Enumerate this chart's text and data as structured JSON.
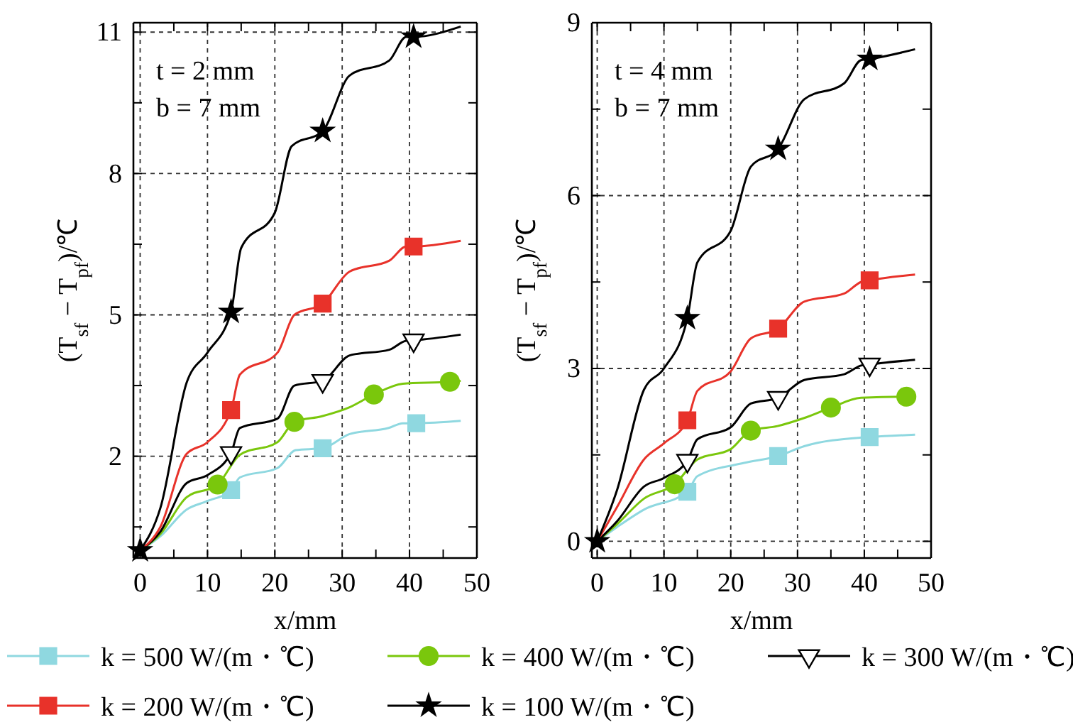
{
  "chart_data": [
    {
      "type": "line",
      "xlabel": "x/mm",
      "ylabel": "(T$_{sf}$ − T$_{pf}$)/℃",
      "annotations": [
        "t = 2 mm",
        "b = 7 mm"
      ],
      "xlim": [
        -1,
        50
      ],
      "ylim": [
        -0.16,
        11.2
      ],
      "xticks": [
        0,
        {
          "value": 5,
          "label": null
        },
        10,
        {
          "value": 15,
          "label": null
        },
        20,
        {
          "value": 25,
          "label": null
        },
        30,
        {
          "value": 35,
          "label": null
        },
        40,
        {
          "value": 45,
          "label": null
        },
        50
      ],
      "yticks": [
        {
          "value": 0.5,
          "label": null
        },
        2,
        {
          "value": 3.5,
          "label": null
        },
        5,
        {
          "value": 6.5,
          "label": null
        },
        8,
        {
          "value": 9.5,
          "label": null
        },
        11
      ],
      "grid": true,
      "line_style": "solid",
      "legend": "bottom",
      "series": [
        {
          "name": "k = 500 W/(m・℃)",
          "color": "#8fd8e0",
          "x": [
            0,
            3,
            6.9,
            10,
            13.5,
            14.8,
            20.4,
            23.1,
            27.1,
            31.1,
            36.9,
            39,
            41,
            47.6
          ],
          "values": [
            0,
            0.3,
            0.87,
            1.05,
            1.28,
            1.55,
            1.75,
            2.13,
            2.17,
            2.47,
            2.6,
            2.7,
            2.7,
            2.75
          ]
        },
        {
          "name": "k = 400 W/(m・℃)",
          "color": "#7ac70c",
          "x": [
            0,
            3,
            6.9,
            11.5,
            14.8,
            20.4,
            22.9,
            27,
            31.1,
            34.7,
            39,
            46,
            47.6
          ],
          "values": [
            0,
            0.35,
            1.13,
            1.4,
            2.03,
            2.3,
            2.73,
            2.85,
            3.04,
            3.31,
            3.54,
            3.58,
            3.6
          ]
        },
        {
          "name": "k = 300 W/(m・℃)",
          "color": "#000000",
          "x": [
            0,
            3,
            6.9,
            10,
            13.5,
            14.8,
            20.4,
            22.9,
            27.1,
            31.1,
            37,
            39.5,
            40.6,
            47.6
          ],
          "values": [
            0,
            0.4,
            1.43,
            1.6,
            2.07,
            2.6,
            2.8,
            3.5,
            3.6,
            4.14,
            4.26,
            4.45,
            4.46,
            4.58
          ]
        },
        {
          "name": "k = 200 W/(m・℃)",
          "color": "#e8322a",
          "x": [
            0,
            3,
            6.9,
            10,
            13.5,
            14.8,
            20.4,
            22.9,
            27.1,
            31.1,
            37,
            39.5,
            40.6,
            47.6
          ],
          "values": [
            0,
            0.5,
            2.05,
            2.3,
            2.98,
            3.73,
            4.2,
            5,
            5.24,
            5.92,
            6.15,
            6.45,
            6.45,
            6.57
          ]
        },
        {
          "name": "k = 100 W/(m・℃)",
          "color": "#000000",
          "x": [
            0,
            3,
            6.9,
            10,
            13.5,
            15,
            20,
            22.5,
            27.1,
            31.1,
            37,
            39.5,
            40.6,
            47.6
          ],
          "values": [
            0,
            0.9,
            3.56,
            4.2,
            5.06,
            6.42,
            7.17,
            8.58,
            8.9,
            10.08,
            10.4,
            10.9,
            10.9,
            11.12
          ]
        },
        {
          "type": "scatter",
          "color": "#8fd8e0",
          "marker": "square",
          "x": [
            13.5,
            27.1,
            41
          ],
          "values": [
            1.28,
            2.17,
            2.7
          ]
        },
        {
          "type": "scatter",
          "color": "#7ac70c",
          "marker": "circle",
          "x": [
            11.5,
            22.9,
            34.7,
            46
          ],
          "values": [
            1.4,
            2.73,
            3.31,
            3.58
          ]
        },
        {
          "type": "scatter",
          "color": "#000000",
          "marker": "triangle",
          "x": [
            13.5,
            27.1,
            40.6
          ],
          "values": [
            2.07,
            3.6,
            4.46
          ]
        },
        {
          "type": "scatter",
          "color": "#e8322a",
          "marker": "square",
          "x": [
            13.5,
            27.1,
            40.6
          ],
          "values": [
            2.98,
            5.24,
            6.45
          ]
        },
        {
          "type": "scatter",
          "color": "#000000",
          "marker": "star",
          "x": [
            0,
            13.5,
            27.1,
            40.6
          ],
          "values": [
            0,
            5.06,
            8.9,
            10.9
          ]
        }
      ]
    },
    {
      "type": "line",
      "xlabel": "x/mm",
      "ylabel": "(T$_{sf}$ − T$_{pf}$)/℃",
      "annotations": [
        "t = 4 mm",
        "b = 7 mm"
      ],
      "xlim": [
        -0.8,
        50
      ],
      "ylim": [
        -0.29,
        9
      ],
      "xticks": [
        0,
        {
          "value": 5,
          "label": null
        },
        10,
        {
          "value": 15,
          "label": null
        },
        20,
        {
          "value": 25,
          "label": null
        },
        30,
        {
          "value": 35,
          "label": null
        },
        40,
        {
          "value": 45,
          "label": null
        },
        50
      ],
      "yticks": [
        0,
        {
          "value": 1.5,
          "label": null
        },
        3,
        {
          "value": 4.5,
          "label": null
        },
        6,
        {
          "value": 7.5,
          "label": null
        },
        9
      ],
      "grid": true,
      "line_style": "solid",
      "series": [
        {
          "color": "#8fd8e0",
          "x": [
            0,
            3,
            7,
            13.5,
            15,
            22,
            27.1,
            31,
            39.5,
            40.8,
            47.6
          ],
          "values": [
            0,
            0.25,
            0.55,
            0.86,
            1.13,
            1.36,
            1.48,
            1.65,
            1.8,
            1.81,
            1.85
          ]
        },
        {
          "color": "#7ac70c",
          "x": [
            0,
            3,
            7,
            11.6,
            15,
            20,
            23,
            27,
            31,
            35,
            39.5,
            46.3,
            47.6
          ],
          "values": [
            0,
            0.3,
            0.74,
            0.99,
            1.42,
            1.6,
            1.92,
            2,
            2.14,
            2.32,
            2.49,
            2.51,
            2.5
          ]
        },
        {
          "color": "#000000",
          "x": [
            0,
            3,
            7,
            10,
            13.5,
            15,
            20,
            23,
            27.1,
            31,
            37,
            39.5,
            40.8,
            47.6
          ],
          "values": [
            0,
            0.35,
            0.95,
            1.1,
            1.4,
            1.77,
            1.98,
            2.39,
            2.49,
            2.8,
            2.9,
            3.05,
            3.07,
            3.15
          ]
        },
        {
          "color": "#e8322a",
          "x": [
            0,
            3,
            7,
            10,
            13.5,
            15,
            20,
            23,
            27.1,
            31,
            37,
            39.5,
            40.8,
            47.6
          ],
          "values": [
            0,
            0.6,
            1.42,
            1.7,
            2.1,
            2.61,
            2.95,
            3.52,
            3.69,
            4.16,
            4.3,
            4.5,
            4.53,
            4.63
          ]
        },
        {
          "color": "#000000",
          "x": [
            0,
            3,
            7,
            10,
            13.5,
            15,
            20,
            23,
            27.1,
            31,
            37,
            39.5,
            40.8,
            47.6
          ],
          "values": [
            0,
            0.9,
            2.63,
            3,
            3.87,
            4.84,
            5.39,
            6.5,
            6.81,
            7.67,
            7.95,
            8.35,
            8.37,
            8.54
          ]
        },
        {
          "type": "scatter",
          "color": "#8fd8e0",
          "marker": "square",
          "x": [
            13.5,
            27.1,
            40.8
          ],
          "values": [
            0.86,
            1.48,
            1.81
          ]
        },
        {
          "type": "scatter",
          "color": "#7ac70c",
          "marker": "circle",
          "x": [
            11.6,
            23,
            35,
            46.3
          ],
          "values": [
            0.99,
            1.92,
            2.32,
            2.51
          ]
        },
        {
          "type": "scatter",
          "color": "#000000",
          "marker": "triangle",
          "x": [
            13.5,
            27.1,
            40.8
          ],
          "values": [
            1.4,
            2.49,
            3.07
          ]
        },
        {
          "type": "scatter",
          "color": "#e8322a",
          "marker": "square",
          "x": [
            13.5,
            27.1,
            40.8
          ],
          "values": [
            2.1,
            3.69,
            4.53
          ]
        },
        {
          "type": "scatter",
          "color": "#000000",
          "marker": "star",
          "x": [
            0,
            13.5,
            27.1,
            40.8
          ],
          "values": [
            0,
            3.87,
            6.81,
            8.37
          ]
        }
      ]
    }
  ]
}
